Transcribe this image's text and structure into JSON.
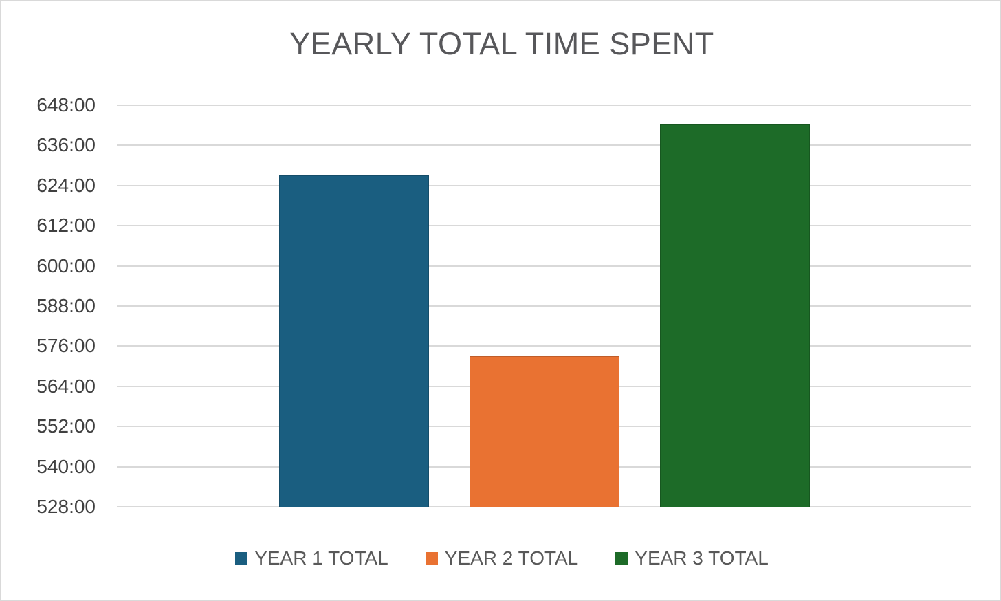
{
  "page": {
    "background_color": "#ffffff",
    "frame_border_color": "#d9d9d9"
  },
  "chart_data": {
    "type": "bar",
    "title": "YEARLY TOTAL TIME SPENT",
    "categories": [
      "YEAR 1 TOTAL",
      "YEAR 2 TOTAL",
      "YEAR 3 TOTAL"
    ],
    "series": [
      {
        "name": "YEAR 1 TOTAL",
        "value_hours": 627,
        "value_label": "627:00",
        "color": "#1a5e80"
      },
      {
        "name": "YEAR 2 TOTAL",
        "value_hours": 573,
        "value_label": "573:00",
        "color": "#e97232"
      },
      {
        "name": "YEAR 3 TOTAL",
        "value_hours": 642,
        "value_label": "642:00",
        "color": "#1d6b28"
      }
    ],
    "y_axis": {
      "min_hours": 528,
      "max_hours": 648,
      "step_hours": 12,
      "tick_labels_top_to_bottom": [
        "648:00",
        "636:00",
        "624:00",
        "612:00",
        "600:00",
        "588:00",
        "576:00",
        "564:00",
        "552:00",
        "540:00",
        "528:00"
      ]
    },
    "xlabel": "",
    "ylabel": "",
    "grid": "horizontal",
    "gridline_color": "#d9d9d9",
    "legend_position": "bottom",
    "text_colors": {
      "title": "#57575a",
      "axis_tick_labels": "#404040",
      "legend_labels": "#595959"
    }
  }
}
